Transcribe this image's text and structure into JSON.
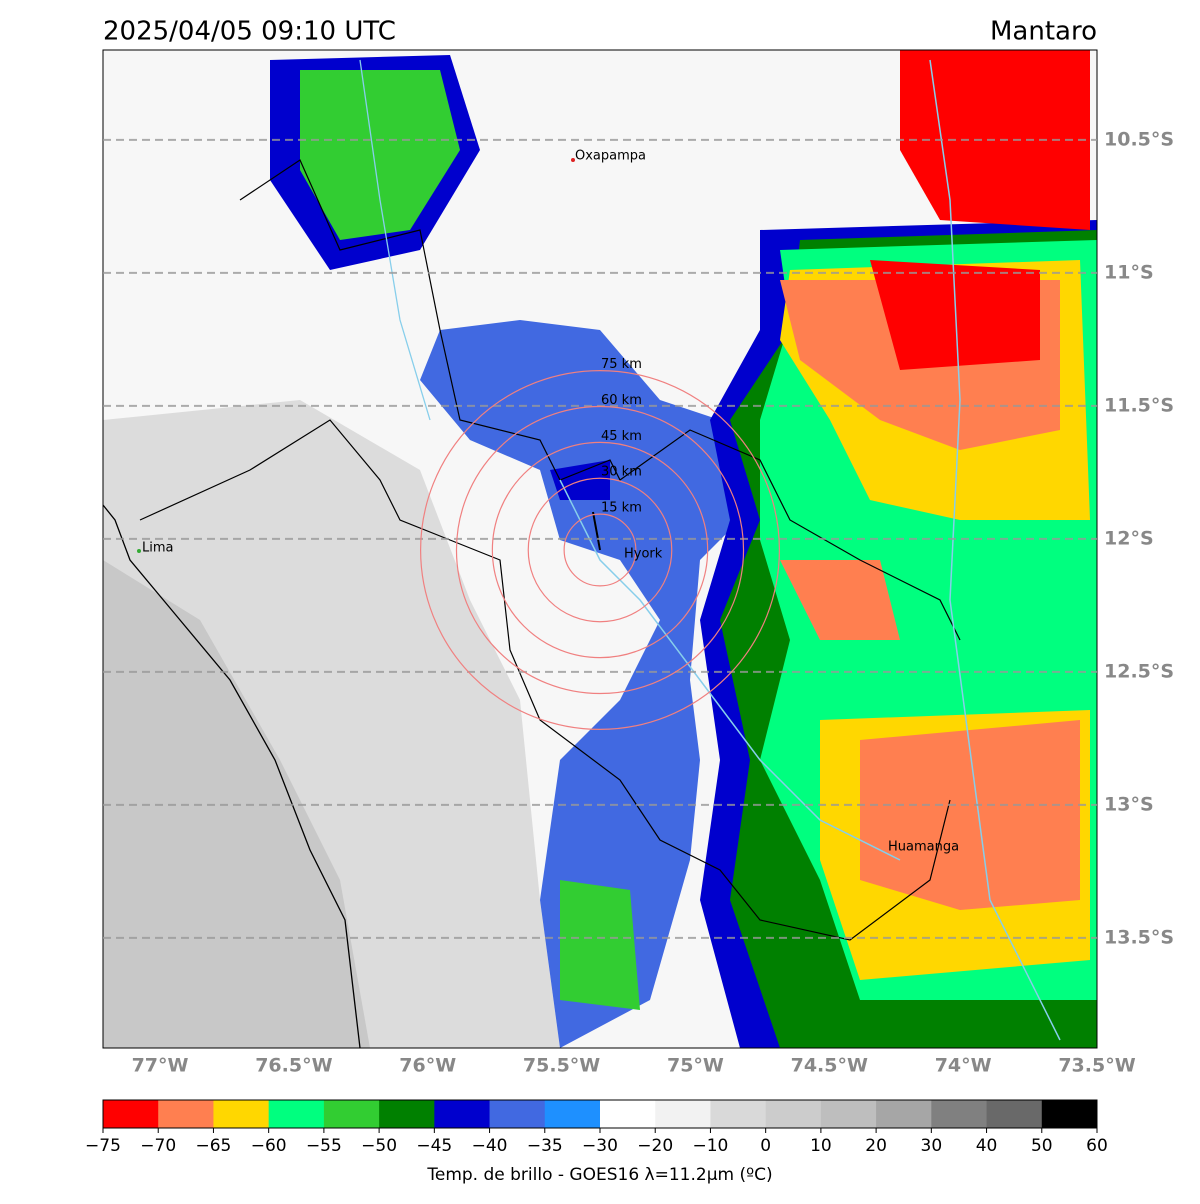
{
  "header": {
    "title": "2025/04/05 09:10 UTC",
    "region": "Mantaro"
  },
  "map": {
    "xlim": [
      -77.213,
      -73.5
    ],
    "ylim": [
      -13.914,
      -10.162
    ],
    "lat_labels": [
      {
        "value": -10.5,
        "label": "10.5°S"
      },
      {
        "value": -11,
        "label": "11°S"
      },
      {
        "value": -11.5,
        "label": "11.5°S"
      },
      {
        "value": -12,
        "label": "12°S"
      },
      {
        "value": -12.5,
        "label": "12.5°S"
      },
      {
        "value": -13,
        "label": "13°S"
      },
      {
        "value": -13.5,
        "label": "13.5°S"
      }
    ],
    "lon_labels": [
      {
        "value": -77,
        "label": "77°W"
      },
      {
        "value": -76.5,
        "label": "76.5°W"
      },
      {
        "value": -76,
        "label": "76°W"
      },
      {
        "value": -75.5,
        "label": "75.5°W"
      },
      {
        "value": -75,
        "label": "75°W"
      },
      {
        "value": -74.5,
        "label": "74.5°W"
      },
      {
        "value": -74,
        "label": "74°W"
      },
      {
        "value": -73.5,
        "label": "73.5°W"
      }
    ],
    "places": [
      "Oxapampa",
      "Lima",
      "Hyork",
      "Huamanga"
    ],
    "rings": [
      {
        "value": 15,
        "label": "15 km"
      },
      {
        "value": 30,
        "label": "30 km"
      },
      {
        "value": 45,
        "label": "45 km"
      },
      {
        "value": 60,
        "label": "60 km"
      },
      {
        "value": 75,
        "label": "75 km"
      }
    ]
  },
  "colorbar": {
    "label": "Temp. de brillo - GOES16 λ=11.2μm (ºC)",
    "ticks": [
      {
        "value": -75,
        "label": "−75"
      },
      {
        "value": -70,
        "label": "−70"
      },
      {
        "value": -65,
        "label": "−65"
      },
      {
        "value": -60,
        "label": "−60"
      },
      {
        "value": -55,
        "label": "−55"
      },
      {
        "value": -50,
        "label": "−50"
      },
      {
        "value": -45,
        "label": "−45"
      },
      {
        "value": -40,
        "label": "−40"
      },
      {
        "value": -35,
        "label": "−35"
      },
      {
        "value": -30,
        "label": "−30"
      },
      {
        "value": -20,
        "label": "−20"
      },
      {
        "value": -10,
        "label": "−10"
      },
      0,
      10,
      20,
      30,
      40,
      50,
      60
    ],
    "colors": [
      "#ff0000",
      "#ff7f50",
      "#ffd700",
      "#00ff7f",
      "#32cd32",
      "#008000",
      "#0000cd",
      "#4169e1",
      "#1e90ff",
      "#ffffff",
      "#f2f2f2",
      "#d9d9d9",
      "#cccccc",
      "#bebebe",
      "#a6a6a6",
      "#808080",
      "#696969",
      "#000000"
    ]
  }
}
